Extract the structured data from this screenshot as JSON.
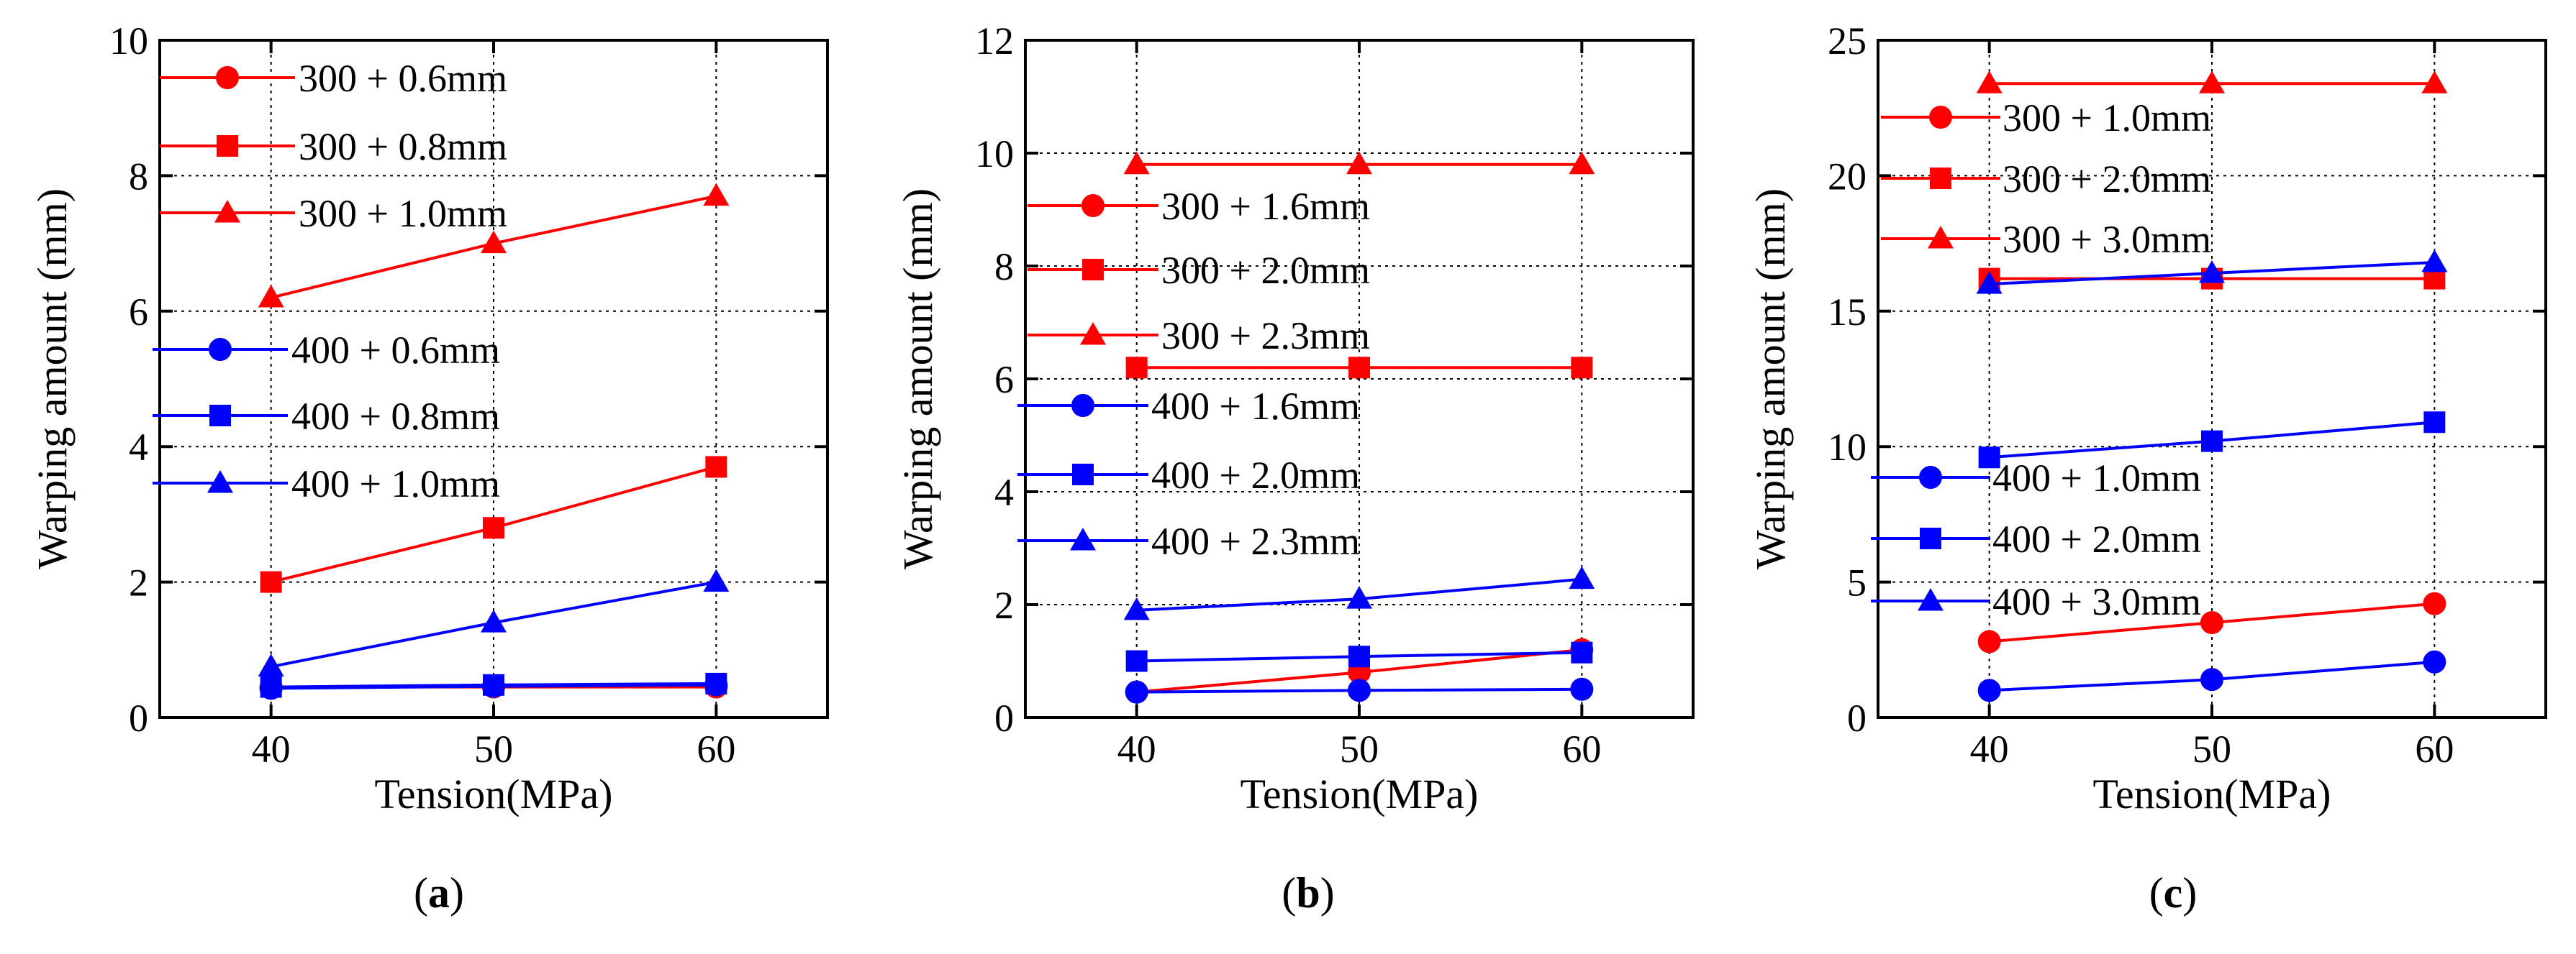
{
  "colors": {
    "red": "#ff0000",
    "blue": "#0000ff",
    "grid": "#000000",
    "axis": "#000000"
  },
  "chart_data": [
    {
      "type": "line",
      "panel_label": "a",
      "xlabel": "Tension(MPa)",
      "ylabel": "Warping amount (mm)",
      "xlim": [
        35,
        65
      ],
      "ylim": [
        0,
        10
      ],
      "xticks": [
        40,
        50,
        60
      ],
      "xtick_labels": [
        "40",
        "50",
        "60"
      ],
      "yticks": [
        0,
        2,
        4,
        6,
        8,
        10
      ],
      "ytick_labels": [
        "0",
        "2",
        "4",
        "6",
        "8",
        "10"
      ],
      "grid": true,
      "legend_position": "top-left",
      "x": [
        40,
        50,
        60
      ],
      "series": [
        {
          "name": "300 + 0.6mm",
          "color": "red",
          "marker": "circle",
          "values": [
            0.45,
            0.45,
            0.45
          ]
        },
        {
          "name": "300 + 0.8mm",
          "color": "red",
          "marker": "square",
          "values": [
            2.0,
            2.8,
            3.7
          ]
        },
        {
          "name": "300 + 1.0mm",
          "color": "red",
          "marker": "triangle",
          "values": [
            6.2,
            7.0,
            7.7
          ]
        },
        {
          "name": "400 + 0.6mm",
          "color": "blue",
          "marker": "circle",
          "values": [
            0.43,
            0.46,
            0.48
          ]
        },
        {
          "name": "400 + 0.8mm",
          "color": "blue",
          "marker": "square",
          "values": [
            0.45,
            0.48,
            0.5
          ]
        },
        {
          "name": "400 + 1.0mm",
          "color": "blue",
          "marker": "triangle",
          "values": [
            0.75,
            1.4,
            2.0
          ]
        }
      ]
    },
    {
      "type": "line",
      "panel_label": "b",
      "xlabel": "Tension(MPa)",
      "ylabel": "Warping amount (mm)",
      "xlim": [
        35,
        65
      ],
      "ylim": [
        0,
        12
      ],
      "xticks": [
        40,
        50,
        60
      ],
      "xtick_labels": [
        "40",
        "50",
        "60"
      ],
      "yticks": [
        0,
        2,
        4,
        6,
        8,
        10,
        12
      ],
      "ytick_labels": [
        "0",
        "2",
        "4",
        "6",
        "8",
        "10",
        "12"
      ],
      "grid": true,
      "legend_position": "left",
      "x": [
        40,
        50,
        60
      ],
      "series": [
        {
          "name": "300 + 1.6mm",
          "color": "red",
          "marker": "circle",
          "values": [
            0.45,
            0.8,
            1.2
          ]
        },
        {
          "name": "300 + 2.0mm",
          "color": "red",
          "marker": "square",
          "values": [
            6.2,
            6.2,
            6.2
          ]
        },
        {
          "name": "300 + 2.3mm",
          "color": "red",
          "marker": "triangle",
          "values": [
            9.8,
            9.8,
            9.8
          ]
        },
        {
          "name": "400 + 1.6mm",
          "color": "blue",
          "marker": "circle",
          "values": [
            0.45,
            0.48,
            0.5
          ]
        },
        {
          "name": "400 + 2.0mm",
          "color": "blue",
          "marker": "square",
          "values": [
            1.0,
            1.08,
            1.15
          ]
        },
        {
          "name": "400 + 2.3mm",
          "color": "blue",
          "marker": "triangle",
          "values": [
            1.9,
            2.1,
            2.45
          ]
        }
      ]
    },
    {
      "type": "line",
      "panel_label": "c",
      "xlabel": "Tension(MPa)",
      "ylabel": "Warping amount (mm)",
      "xlim": [
        35,
        65
      ],
      "ylim": [
        0,
        25
      ],
      "xticks": [
        40,
        50,
        60
      ],
      "xtick_labels": [
        "40",
        "50",
        "60"
      ],
      "yticks": [
        0,
        5,
        10,
        15,
        20,
        25
      ],
      "ytick_labels": [
        "0",
        "5",
        "10",
        "15",
        "20",
        "25"
      ],
      "grid": true,
      "legend_position": "left",
      "x": [
        40,
        50,
        60
      ],
      "series": [
        {
          "name": "300 + 1.0mm",
          "color": "red",
          "marker": "circle",
          "values": [
            2.8,
            3.5,
            4.2
          ]
        },
        {
          "name": "300 + 2.0mm",
          "color": "red",
          "marker": "square",
          "values": [
            16.2,
            16.2,
            16.2
          ]
        },
        {
          "name": "300 + 3.0mm",
          "color": "red",
          "marker": "triangle",
          "values": [
            23.4,
            23.4,
            23.4
          ]
        },
        {
          "name": "400 + 1.0mm",
          "color": "blue",
          "marker": "circle",
          "values": [
            1.0,
            1.4,
            2.05
          ]
        },
        {
          "name": "400 + 2.0mm",
          "color": "blue",
          "marker": "square",
          "values": [
            9.6,
            10.2,
            10.9
          ]
        },
        {
          "name": "400 + 3.0mm",
          "color": "blue",
          "marker": "triangle",
          "values": [
            16.0,
            16.4,
            16.8
          ]
        }
      ]
    }
  ]
}
